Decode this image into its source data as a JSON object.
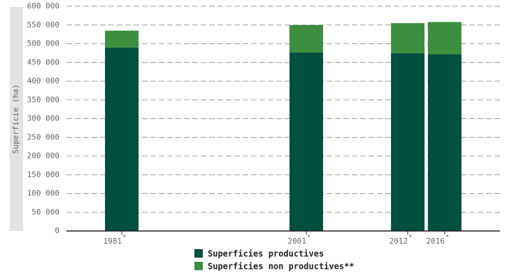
{
  "chart_data": {
    "type": "bar",
    "stacked": true,
    "y_label": "Superficie (ha)",
    "x": [
      1981,
      2001,
      2012,
      2016
    ],
    "x_tick_note": "*",
    "xlim": [
      1975,
      2022
    ],
    "xticks": [
      1981,
      2001,
      2012,
      2016
    ],
    "series": [
      {
        "name": "Superficies productives",
        "color": "#004f3f",
        "values": [
          490000,
          477000,
          475000,
          472000
        ]
      },
      {
        "name": "Superficies non productives**",
        "color": "#3b8f3e",
        "values": [
          45000,
          73000,
          80000,
          86000
        ]
      }
    ],
    "ylim": [
      0,
      600000
    ],
    "yticks": [
      0,
      {
        "value": 50000,
        "label": "50 000"
      },
      {
        "value": 100000,
        "label": "100 000"
      },
      {
        "value": 150000,
        "label": "150 000"
      },
      {
        "value": 200000,
        "label": "200 000"
      },
      {
        "value": 250000,
        "label": "250 000"
      },
      {
        "value": 300000,
        "label": "300 000"
      },
      {
        "value": 350000,
        "label": "350 000"
      },
      {
        "value": 400000,
        "label": "400 000"
      },
      {
        "value": 450000,
        "label": "450 000"
      },
      {
        "value": 500000,
        "label": "500 000"
      },
      {
        "value": 550000,
        "label": "550 000"
      },
      {
        "value": 600000,
        "label": "600 000"
      }
    ],
    "grid": true
  }
}
